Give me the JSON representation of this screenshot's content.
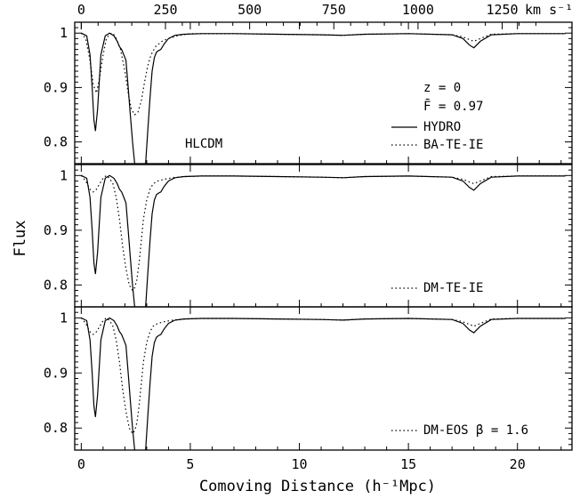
{
  "chart_data": {
    "type": "line",
    "xlabel": "Comoving Distance (h⁻¹Mpc)",
    "ylabel": "Flux",
    "xlim": [
      -0.3,
      22.5
    ],
    "ylim": [
      0.76,
      1.02
    ],
    "x_ticks": [
      "0",
      "5",
      "10",
      "15",
      "20"
    ],
    "y_ticks": [
      "0.8",
      "0.9",
      "1"
    ],
    "top_axis": {
      "ticks": [
        "0",
        "250",
        "500",
        "750",
        "1000",
        "1250"
      ],
      "tick_values_kms": [
        0,
        250,
        500,
        750,
        1000,
        1250
      ],
      "unit": "km s⁻¹"
    },
    "panels": [
      {
        "label": "HLCDM",
        "info": [
          "z = 0",
          "F̄ = 0.97"
        ],
        "series": [
          {
            "name": "HYDRO",
            "style": "solid",
            "x": [
              0,
              0.25,
              0.4,
              0.5,
              0.58,
              0.65,
              0.75,
              0.9,
              1.1,
              1.3,
              1.5,
              1.65,
              1.75,
              1.85,
              1.95,
              2.05,
              2.15,
              2.25,
              2.35,
              2.45,
              2.55,
              2.65,
              2.75,
              2.85,
              2.95,
              3.05,
              3.15,
              3.25,
              3.35,
              3.45,
              3.55,
              3.65,
              3.8,
              4.0,
              4.3,
              4.7,
              5.5,
              7,
              9,
              11,
              12,
              13,
              15,
              17,
              17.5,
              17.8,
              18,
              18.3,
              18.8,
              20,
              22.2
            ],
            "y": [
              1,
              0.995,
              0.96,
              0.9,
              0.84,
              0.82,
              0.86,
              0.96,
              0.995,
              1,
              0.995,
              0.985,
              0.975,
              0.97,
              0.96,
              0.95,
              0.9,
              0.85,
              0.8,
              0.76,
              0.74,
              0.73,
              0.73,
              0.74,
              0.76,
              0.82,
              0.88,
              0.93,
              0.955,
              0.965,
              0.968,
              0.97,
              0.98,
              0.99,
              0.996,
              0.998,
              0.999,
              0.999,
              0.998,
              0.997,
              0.996,
              0.998,
              0.999,
              0.997,
              0.99,
              0.978,
              0.973,
              0.985,
              0.997,
              0.999,
              0.999
            ]
          },
          {
            "name": "BA-TE-IE",
            "style": "dotted",
            "x": [
              0,
              0.2,
              0.4,
              0.55,
              0.7,
              0.85,
              1.0,
              1.15,
              1.3,
              1.45,
              1.6,
              1.8,
              2.0,
              2.15,
              2.3,
              2.45,
              2.6,
              2.75,
              2.9,
              3.05,
              3.2,
              3.4,
              3.7,
              4.0,
              4.4,
              5.0,
              7,
              9,
              11,
              12,
              13,
              15,
              17,
              17.5,
              17.8,
              18,
              18.3,
              18.8,
              20,
              22.2
            ],
            "y": [
              1,
              0.99,
              0.95,
              0.905,
              0.89,
              0.92,
              0.96,
              0.99,
              0.998,
              1,
              0.99,
              0.97,
              0.93,
              0.89,
              0.86,
              0.85,
              0.855,
              0.875,
              0.91,
              0.94,
              0.96,
              0.975,
              0.985,
              0.99,
              0.995,
              0.999,
              0.999,
              0.998,
              0.997,
              0.996,
              0.998,
              0.999,
              0.997,
              0.993,
              0.988,
              0.985,
              0.99,
              0.998,
              0.999,
              0.999
            ]
          }
        ]
      },
      {
        "label": "",
        "info": [],
        "series": [
          {
            "name": "",
            "style": "solid",
            "x": [
              0,
              0.25,
              0.4,
              0.5,
              0.58,
              0.65,
              0.75,
              0.9,
              1.1,
              1.3,
              1.5,
              1.65,
              1.75,
              1.85,
              1.95,
              2.05,
              2.15,
              2.25,
              2.35,
              2.45,
              2.55,
              2.65,
              2.75,
              2.85,
              2.95,
              3.05,
              3.15,
              3.25,
              3.35,
              3.45,
              3.55,
              3.65,
              3.8,
              4.0,
              4.3,
              4.7,
              5.5,
              7,
              9,
              11,
              12,
              13,
              15,
              17,
              17.5,
              17.8,
              18,
              18.3,
              18.8,
              20,
              22.2
            ],
            "y": [
              1,
              0.995,
              0.96,
              0.9,
              0.84,
              0.82,
              0.86,
              0.96,
              0.995,
              1,
              0.995,
              0.985,
              0.975,
              0.97,
              0.96,
              0.95,
              0.9,
              0.85,
              0.8,
              0.76,
              0.74,
              0.73,
              0.73,
              0.74,
              0.76,
              0.82,
              0.88,
              0.93,
              0.955,
              0.965,
              0.968,
              0.97,
              0.98,
              0.99,
              0.996,
              0.998,
              0.999,
              0.999,
              0.998,
              0.997,
              0.996,
              0.998,
              0.999,
              0.997,
              0.99,
              0.978,
              0.973,
              0.985,
              0.997,
              0.999,
              0.999
            ]
          },
          {
            "name": "DM-TE-IE",
            "style": "dotted",
            "x": [
              0,
              0.2,
              0.4,
              0.55,
              0.7,
              0.85,
              1.0,
              1.15,
              1.3,
              1.45,
              1.6,
              1.75,
              1.9,
              2.05,
              2.2,
              2.35,
              2.45,
              2.55,
              2.65,
              2.75,
              2.85,
              3.0,
              3.15,
              3.3,
              3.5,
              3.8,
              4.2,
              4.8,
              5.5,
              7,
              9,
              11,
              12,
              13,
              15,
              17,
              17.5,
              17.8,
              18,
              18.3,
              18.8,
              20,
              22.2
            ],
            "y": [
              1,
              0.99,
              0.975,
              0.97,
              0.975,
              0.985,
              0.995,
              1,
              0.995,
              0.985,
              0.96,
              0.92,
              0.87,
              0.83,
              0.8,
              0.79,
              0.795,
              0.81,
              0.84,
              0.88,
              0.92,
              0.955,
              0.975,
              0.985,
              0.99,
              0.993,
              0.996,
              0.998,
              0.999,
              0.999,
              0.998,
              0.997,
              0.996,
              0.998,
              0.999,
              0.997,
              0.993,
              0.988,
              0.985,
              0.99,
              0.998,
              0.999,
              0.999
            ]
          }
        ]
      },
      {
        "label": "",
        "info": [],
        "series": [
          {
            "name": "",
            "style": "solid",
            "x": [
              0,
              0.25,
              0.4,
              0.5,
              0.58,
              0.65,
              0.75,
              0.9,
              1.1,
              1.3,
              1.5,
              1.65,
              1.75,
              1.85,
              1.95,
              2.05,
              2.15,
              2.25,
              2.35,
              2.45,
              2.55,
              2.65,
              2.75,
              2.85,
              2.95,
              3.05,
              3.15,
              3.25,
              3.35,
              3.45,
              3.55,
              3.65,
              3.8,
              4.0,
              4.3,
              4.7,
              5.5,
              7,
              9,
              11,
              12,
              13,
              15,
              17,
              17.5,
              17.8,
              18,
              18.3,
              18.8,
              20,
              22.2
            ],
            "y": [
              1,
              0.995,
              0.96,
              0.9,
              0.84,
              0.82,
              0.86,
              0.96,
              0.995,
              1,
              0.995,
              0.985,
              0.975,
              0.97,
              0.96,
              0.95,
              0.9,
              0.85,
              0.8,
              0.76,
              0.74,
              0.73,
              0.73,
              0.74,
              0.76,
              0.82,
              0.88,
              0.93,
              0.955,
              0.965,
              0.968,
              0.97,
              0.98,
              0.99,
              0.996,
              0.998,
              0.999,
              0.999,
              0.998,
              0.997,
              0.996,
              0.998,
              0.999,
              0.997,
              0.99,
              0.978,
              0.973,
              0.985,
              0.997,
              0.999,
              0.999
            ]
          },
          {
            "name": "DM-EOS β = 1.6",
            "style": "dotted",
            "x": [
              0,
              0.2,
              0.4,
              0.55,
              0.7,
              0.85,
              1.0,
              1.15,
              1.3,
              1.45,
              1.6,
              1.75,
              1.9,
              2.05,
              2.2,
              2.35,
              2.45,
              2.55,
              2.65,
              2.75,
              2.85,
              3.0,
              3.15,
              3.3,
              3.5,
              3.8,
              4.2,
              4.8,
              5.5,
              7,
              9,
              11,
              12,
              13,
              15,
              17,
              17.5,
              17.8,
              18,
              18.3,
              18.8,
              20,
              22.2
            ],
            "y": [
              1,
              0.99,
              0.975,
              0.97,
              0.975,
              0.985,
              0.995,
              1,
              0.995,
              0.985,
              0.96,
              0.92,
              0.87,
              0.83,
              0.8,
              0.79,
              0.795,
              0.81,
              0.84,
              0.88,
              0.92,
              0.955,
              0.975,
              0.985,
              0.99,
              0.993,
              0.996,
              0.998,
              0.999,
              0.999,
              0.998,
              0.997,
              0.996,
              0.998,
              0.999,
              0.997,
              0.993,
              0.988,
              0.985,
              0.99,
              0.998,
              0.999,
              0.999
            ]
          }
        ]
      }
    ]
  }
}
